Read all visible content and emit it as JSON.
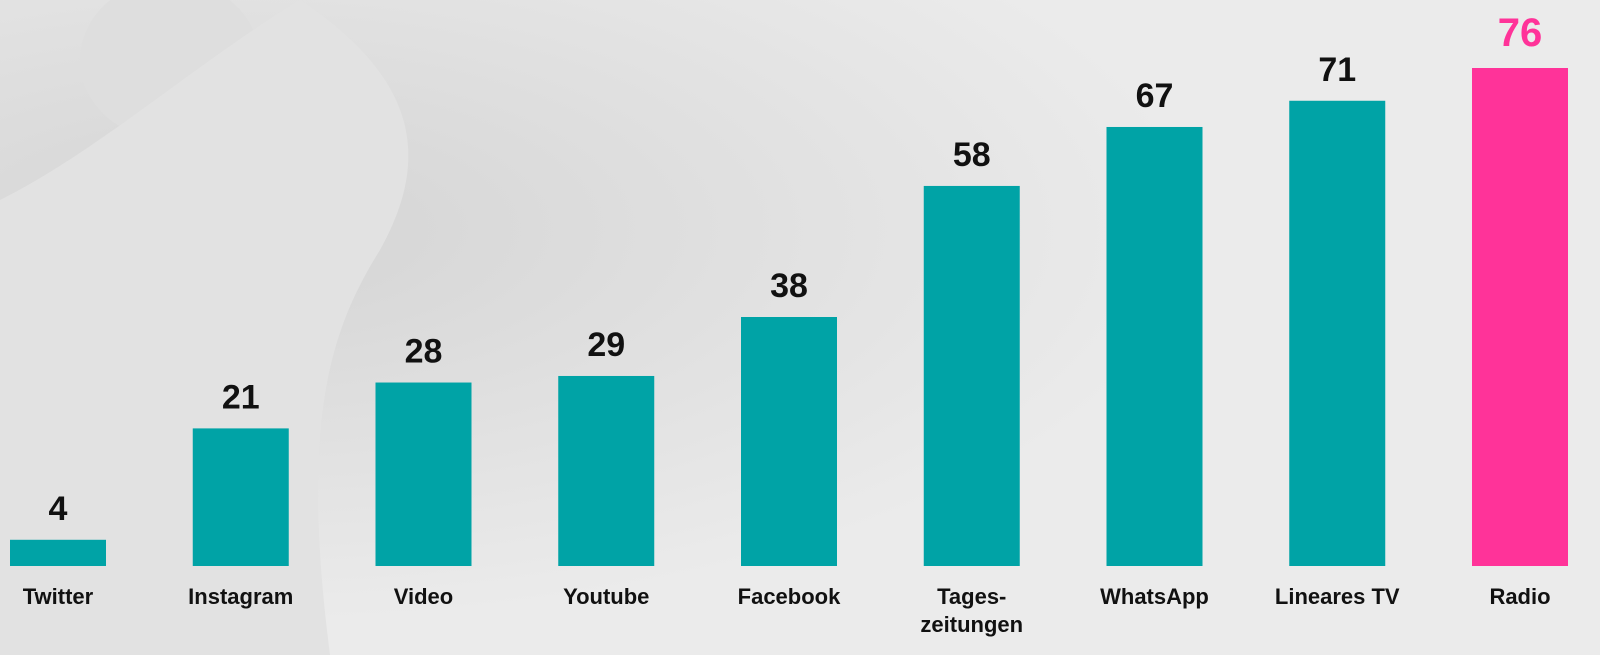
{
  "chart_data": {
    "type": "bar",
    "categories": [
      "Twitter",
      "Instagram",
      "Video",
      "Youtube",
      "Facebook",
      "Tages-\nzeitungen",
      "WhatsApp",
      "Lineares TV",
      "Radio"
    ],
    "values": [
      4,
      21,
      28,
      29,
      38,
      58,
      67,
      71,
      76
    ],
    "colors": [
      "#00a3a6",
      "#00a3a6",
      "#00a3a6",
      "#00a3a6",
      "#00a3a6",
      "#00a3a6",
      "#00a3a6",
      "#00a3a6",
      "#ff3399"
    ],
    "label_colors": [
      "#111111",
      "#111111",
      "#111111",
      "#111111",
      "#111111",
      "#111111",
      "#111111",
      "#111111",
      "#ff3399"
    ]
  }
}
